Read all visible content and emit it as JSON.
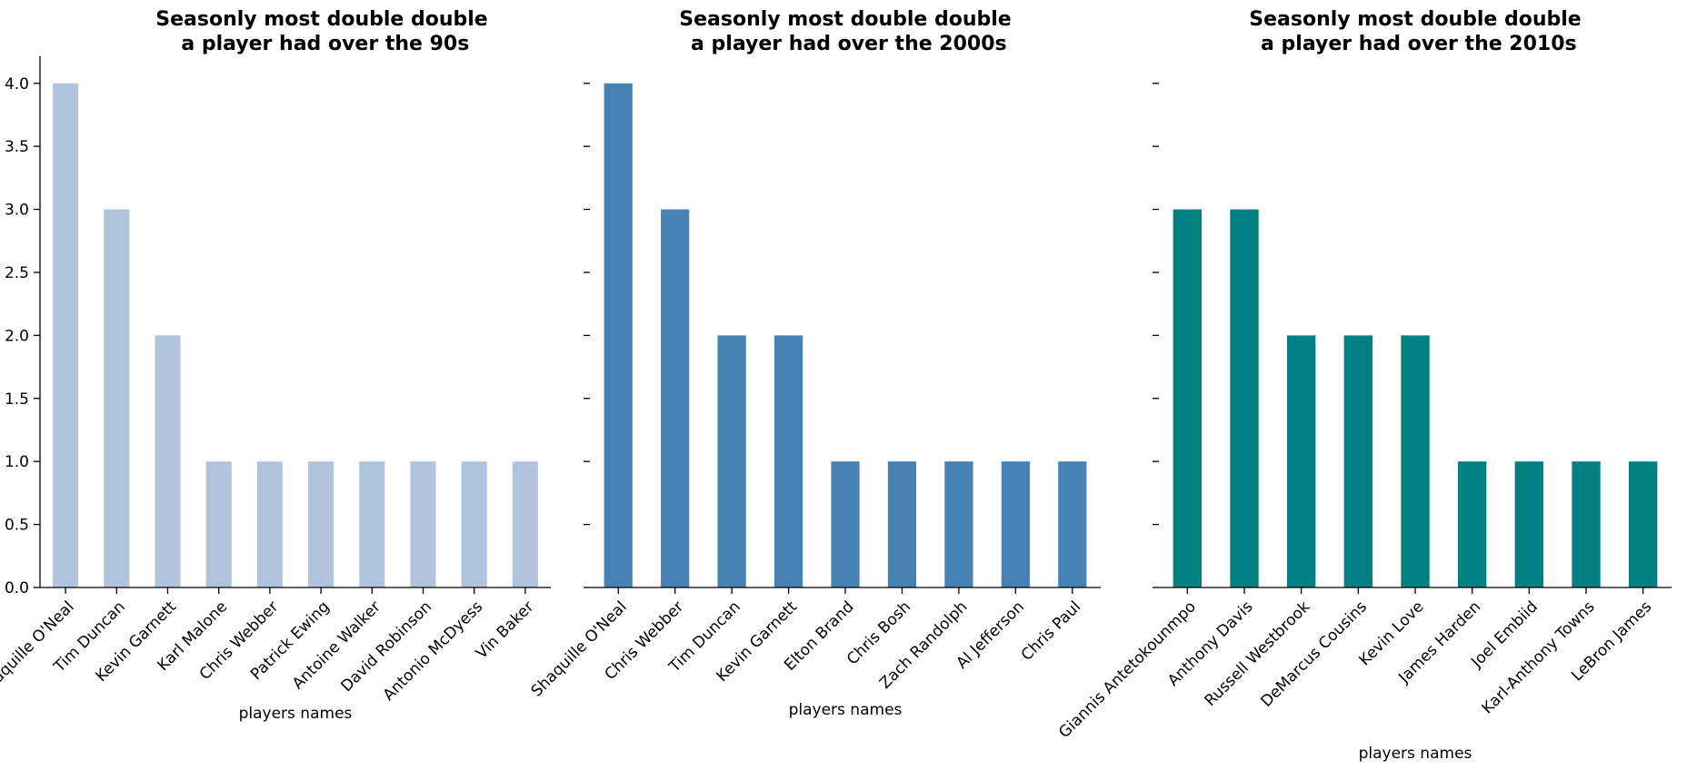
{
  "chart_data": [
    {
      "type": "bar",
      "title": "Seasonly most double double\n a player had over the 90s",
      "xlabel": "players names",
      "ylabel": "",
      "ylim": [
        0,
        4.2
      ],
      "yticks": [
        "0.0",
        "0.5",
        "1.0",
        "1.5",
        "2.0",
        "2.5",
        "3.0",
        "3.5",
        "4.0"
      ],
      "show_ytick_labels": true,
      "show_left_spine": true,
      "color": "#B0C4DE",
      "categories": [
        "Shaquille O'Neal",
        "Tim Duncan",
        "Kevin Garnett",
        "Karl Malone",
        "Chris Webber",
        "Patrick Ewing",
        "Antoine Walker",
        "David Robinson",
        "Antonio McDyess",
        "Vin Baker"
      ],
      "values": [
        4,
        3,
        2,
        1,
        1,
        1,
        1,
        1,
        1,
        1
      ]
    },
    {
      "type": "bar",
      "title": "Seasonly most double double\n a player had over the 2000s",
      "xlabel": "players names",
      "ylabel": "",
      "ylim": [
        0,
        4.2
      ],
      "yticks": [
        "0.0",
        "0.5",
        "1.0",
        "1.5",
        "2.0",
        "2.5",
        "3.0",
        "3.5",
        "4.0"
      ],
      "show_ytick_labels": false,
      "show_left_spine": false,
      "color": "#4682B4",
      "categories": [
        "Shaquille O'Neal",
        "Chris Webber",
        "Tim Duncan",
        "Kevin Garnett",
        "Elton Brand",
        "Chris Bosh",
        "Zach Randolph",
        "Al Jefferson",
        "Chris Paul"
      ],
      "values": [
        4,
        3,
        2,
        2,
        1,
        1,
        1,
        1,
        1
      ]
    },
    {
      "type": "bar",
      "title": "Seasonly most double double\n a player had over the 2010s",
      "xlabel": "players names",
      "ylabel": "",
      "ylim": [
        0,
        4.2
      ],
      "yticks": [
        "0.0",
        "0.5",
        "1.0",
        "1.5",
        "2.0",
        "2.5",
        "3.0",
        "3.5",
        "4.0"
      ],
      "show_ytick_labels": false,
      "show_left_spine": false,
      "color": "#008080",
      "categories": [
        "Giannis Antetokounmpo",
        "Anthony Davis",
        "Russell Westbrook",
        "DeMarcus Cousins",
        "Kevin Love",
        "James Harden",
        "Joel Embiid",
        "Karl-Anthony Towns",
        "LeBron James"
      ],
      "values": [
        3,
        3,
        2,
        2,
        2,
        1,
        1,
        1,
        1
      ]
    }
  ]
}
